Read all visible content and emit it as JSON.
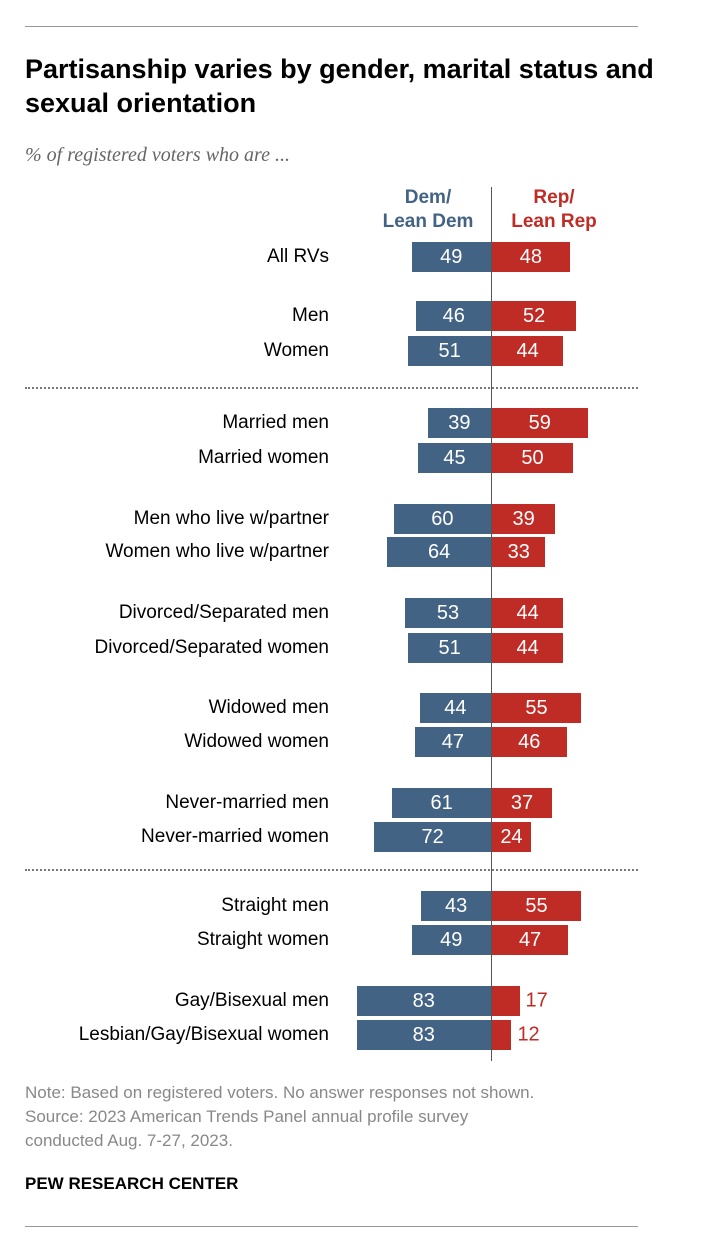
{
  "colors": {
    "dem": "#436384",
    "rep": "#bf2c25"
  },
  "chart_data": {
    "type": "bar",
    "orientation": "horizontal-diverging",
    "title": "Partisanship varies by gender, marital status and sexual orientation",
    "subtitle": "% of registered voters who are ...",
    "legend": {
      "dem": "Dem/ Lean Dem",
      "rep": "Rep/ Lean Rep"
    },
    "legend_dem_line1": "Dem/",
    "legend_dem_line2": "Lean Dem",
    "legend_rep_line1": "Rep/",
    "legend_rep_line2": "Lean Rep",
    "categories": [
      "All RVs",
      "Men",
      "Women",
      "Married men",
      "Married women",
      "Men who live w/partner",
      "Women who live w/partner",
      "Divorced/Separated men",
      "Divorced/Separated women",
      "Widowed men",
      "Widowed women",
      "Never-married men",
      "Never-married women",
      "Straight men",
      "Straight women",
      "Gay/Bisexual men",
      "Lesbian/Gay/Bisexual women"
    ],
    "series": [
      {
        "name": "Dem/Lean Dem",
        "values": [
          49,
          46,
          51,
          39,
          45,
          60,
          64,
          53,
          51,
          44,
          47,
          61,
          72,
          43,
          49,
          83,
          83
        ]
      },
      {
        "name": "Rep/Lean Rep",
        "values": [
          48,
          52,
          44,
          59,
          50,
          39,
          33,
          44,
          44,
          55,
          46,
          37,
          24,
          55,
          47,
          17,
          12
        ]
      }
    ],
    "xlim": [
      0,
      100
    ]
  },
  "note": "Note: Based on registered voters. No answer responses not shown.",
  "source_line1": "Source: 2023 American Trends Panel annual profile survey",
  "source_line2": "conducted Aug. 7-27, 2023.",
  "brand": "PEW RESEARCH CENTER"
}
